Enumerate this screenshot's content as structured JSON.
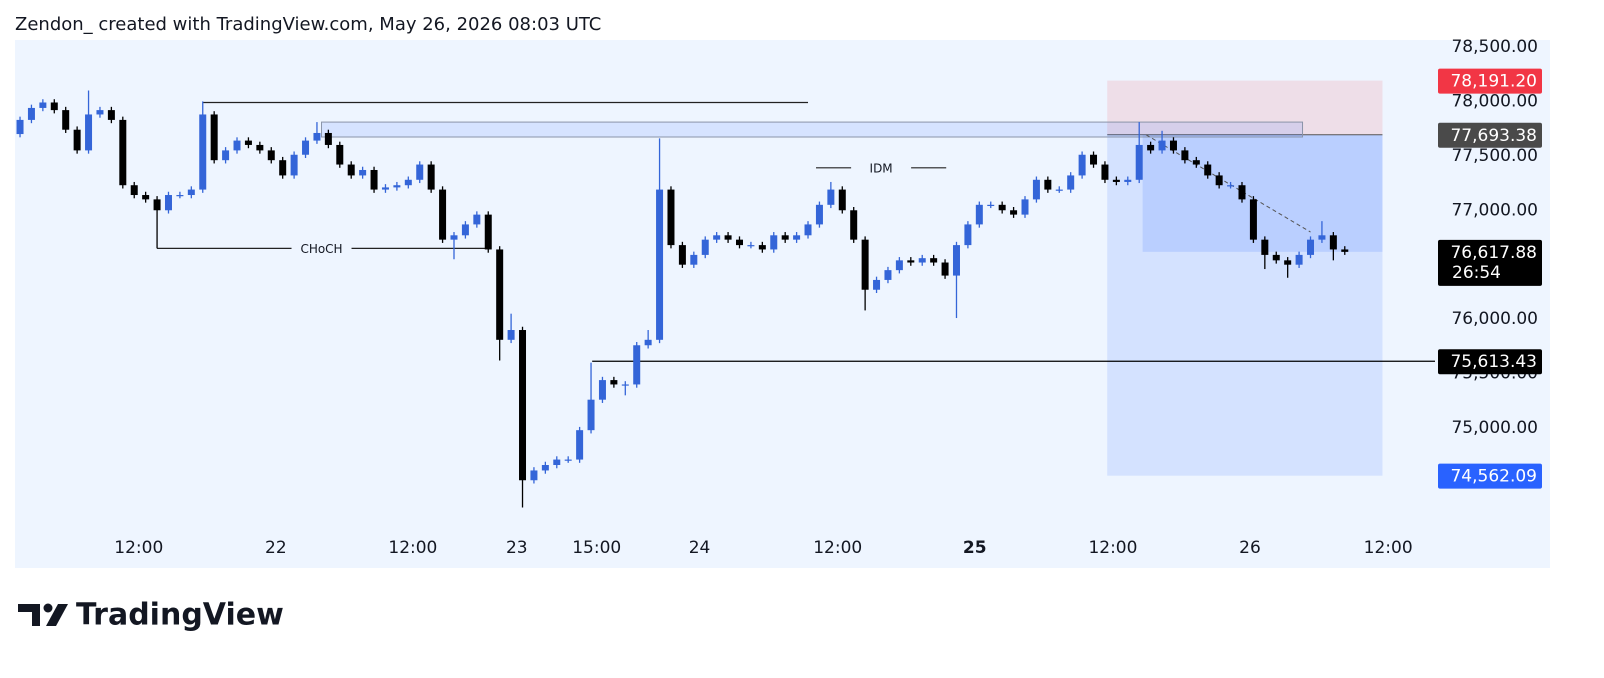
{
  "header": "Zendon_ created with TradingView.com, May 26, 2026 08:03 UTC",
  "footer": "TradingView",
  "chart_data": {
    "type": "candlestick",
    "up_color": "#3465d8",
    "down_color": "#000000",
    "ylim": [
      74063,
      78564
    ],
    "xlim": [
      -0.44,
      123.2
    ],
    "yticks": [
      {
        "value": 78500,
        "label": "78,500.00"
      },
      {
        "value": 78000,
        "label": "78,000.00"
      },
      {
        "value": 77500,
        "label": "77,500.00"
      },
      {
        "value": 77000,
        "label": "77,000.00"
      },
      {
        "value": 76500,
        "label": "76,500.00"
      },
      {
        "value": 76000,
        "label": "76,000.00"
      },
      {
        "value": 75500,
        "label": "75,500.00"
      },
      {
        "value": 75000,
        "label": "75,000.00"
      }
    ],
    "xticks": [
      {
        "value": 10.4,
        "label": "12:00"
      },
      {
        "value": 22.4,
        "label": "22"
      },
      {
        "value": 34.4,
        "label": "12:00"
      },
      {
        "value": 43.5,
        "label": "23"
      },
      {
        "value": 50.5,
        "label": "15:00"
      },
      {
        "value": 59.5,
        "label": "24"
      },
      {
        "value": 71.6,
        "label": "12:00"
      },
      {
        "value": 83.6,
        "label": "25",
        "bold": true
      },
      {
        "value": 95.7,
        "label": "12:00"
      },
      {
        "value": 107.7,
        "label": "26"
      },
      {
        "value": 119.8,
        "label": "12:00"
      }
    ],
    "open": [
      77700,
      77830,
      77940,
      77990,
      77920,
      77740,
      77550,
      77880,
      77920,
      77830,
      77230,
      77140,
      77100,
      77000,
      77140,
      77140,
      77190,
      77880,
      77460,
      77550,
      77640,
      77600,
      77550,
      77460,
      77320,
      77510,
      77640,
      77710,
      77600,
      77420,
      77320,
      77370,
      77190,
      77210,
      77230,
      77280,
      77420,
      77190,
      76730,
      76770,
      76870,
      76960,
      76640,
      75810,
      75900,
      74520,
      74610,
      74660,
      74710,
      74710,
      74980,
      75260,
      75440,
      75400,
      75400,
      75760,
      75810,
      77190,
      76680,
      76500,
      76590,
      76730,
      76770,
      76730,
      76680,
      76680,
      76640,
      76770,
      76730,
      76770,
      76870,
      77050,
      77190,
      77000,
      76730,
      76270,
      76360,
      76450,
      76540,
      76520,
      76560,
      76520,
      76400,
      76680,
      76870,
      77050,
      77050,
      77000,
      76960,
      77100,
      77280,
      77190,
      77190,
      77320,
      77510,
      77420,
      77280,
      77260,
      77280,
      77600,
      77550,
      77640,
      77550,
      77460,
      77420,
      77320,
      77230,
      77230,
      77100,
      76730,
      76590,
      76540,
      76500,
      76590,
      76730,
      76770,
      76640
    ],
    "high": [
      77860,
      77970,
      78020,
      78020,
      77950,
      77770,
      78100,
      77950,
      77950,
      77860,
      77260,
      77170,
      77130,
      77170,
      77170,
      77220,
      78000,
      77910,
      77580,
      77670,
      77670,
      77630,
      77580,
      77490,
      77540,
      77670,
      77810,
      77740,
      77630,
      77450,
      77400,
      77400,
      77240,
      77260,
      77310,
      77450,
      77450,
      77220,
      76800,
      76900,
      76990,
      76990,
      76670,
      76050,
      75930,
      74640,
      74690,
      74740,
      74740,
      75010,
      75600,
      75470,
      75470,
      75430,
      75790,
      75900,
      77660,
      77220,
      76710,
      76620,
      76760,
      76800,
      76800,
      76760,
      76710,
      76710,
      76800,
      76800,
      76800,
      76900,
      77080,
      77260,
      77220,
      77030,
      76760,
      76390,
      76480,
      76570,
      76570,
      76590,
      76590,
      76550,
      76710,
      76900,
      77080,
      77080,
      77080,
      77030,
      77130,
      77310,
      77310,
      77220,
      77350,
      77540,
      77540,
      77450,
      77310,
      77310,
      77810,
      77630,
      77730,
      77670,
      77580,
      77490,
      77450,
      77350,
      77260,
      77260,
      77130,
      76760,
      76620,
      76570,
      76620,
      76760,
      76900,
      76800,
      76670
    ],
    "low": [
      77670,
      77800,
      77910,
      77890,
      77710,
      77520,
      77520,
      77850,
      77800,
      77200,
      77110,
      77070,
      76650,
      76970,
      77110,
      77110,
      77160,
      77430,
      77430,
      77520,
      77570,
      77520,
      77430,
      77290,
      77290,
      77480,
      77610,
      77570,
      77390,
      77290,
      77290,
      77160,
      77160,
      77180,
      77200,
      77250,
      77160,
      76700,
      76550,
      76740,
      76840,
      76610,
      75620,
      75780,
      74270,
      74490,
      74580,
      74630,
      74680,
      74680,
      74950,
      75230,
      75370,
      75300,
      75370,
      75730,
      75780,
      76650,
      76470,
      76470,
      76560,
      76700,
      76700,
      76650,
      76650,
      76610,
      76610,
      76700,
      76700,
      76740,
      76840,
      77020,
      76970,
      76700,
      76080,
      76240,
      76330,
      76420,
      76490,
      76490,
      76490,
      76370,
      76010,
      76650,
      76840,
      77020,
      76970,
      76930,
      76930,
      77070,
      77160,
      77160,
      77160,
      77290,
      77390,
      77250,
      77230,
      77230,
      77250,
      77520,
      77520,
      77520,
      77430,
      77390,
      77290,
      77200,
      77200,
      77070,
      76700,
      76460,
      76510,
      76380,
      76470,
      76560,
      76700,
      76540,
      76590
    ],
    "close": [
      77830,
      77940,
      77990,
      77920,
      77740,
      77550,
      77880,
      77920,
      77830,
      77230,
      77140,
      77100,
      77000,
      77140,
      77140,
      77190,
      77880,
      77460,
      77550,
      77640,
      77600,
      77550,
      77460,
      77320,
      77510,
      77640,
      77710,
      77600,
      77420,
      77320,
      77370,
      77190,
      77210,
      77230,
      77280,
      77420,
      77190,
      76730,
      76770,
      76870,
      76960,
      76640,
      75810,
      75900,
      74520,
      74610,
      74660,
      74710,
      74710,
      74980,
      75260,
      75440,
      75400,
      75400,
      75760,
      75810,
      77190,
      76680,
      76500,
      76590,
      76730,
      76770,
      76730,
      76680,
      76680,
      76640,
      76770,
      76730,
      76770,
      76870,
      77050,
      77190,
      77000,
      76730,
      76270,
      76360,
      76450,
      76540,
      76520,
      76560,
      76520,
      76400,
      76680,
      76870,
      77050,
      77050,
      77000,
      76960,
      77100,
      77280,
      77190,
      77190,
      77320,
      77510,
      77420,
      77280,
      77260,
      77280,
      77600,
      77550,
      77640,
      77550,
      77460,
      77420,
      77320,
      77230,
      77230,
      77100,
      76730,
      76590,
      76540,
      76500,
      76590,
      76730,
      76770,
      76640,
      76617.88
    ],
    "price_labels": [
      {
        "value": 78191.2,
        "label": "78,191.20",
        "color": "#f23645"
      },
      {
        "value": 77693.38,
        "label": "77,693.38",
        "color": "#4a4a4a"
      },
      {
        "value": 76617.88,
        "label": "76,617.88",
        "color": "#000000",
        "countdown": "26:54"
      },
      {
        "value": 75613.43,
        "label": "75,613.43",
        "color": "#000000"
      },
      {
        "value": 74562.09,
        "label": "74,562.09",
        "color": "#2962ff"
      }
    ],
    "position": {
      "from": 95.2,
      "to": 119.3,
      "fill_from": 98.3
    },
    "drawings": {
      "swing_high": {
        "price": 77990,
        "from": 16,
        "to": 69
      },
      "zone": {
        "top": 77810,
        "bottom": 77673,
        "from": 26.4,
        "to": 112.3
      },
      "choch": {
        "label": "CHoCH",
        "price": 76650,
        "from": 12,
        "to": 40.9,
        "label_at": 26.4
      },
      "idm": {
        "label": "IDM",
        "price": 77390,
        "from": 69.7,
        "to": 81.1,
        "label_at": 75.4
      },
      "level": {
        "from": 50.1,
        "to": 123.9
      },
      "trend": {
        "from": 98.6,
        "to": 113,
        "end_price": 76800
      }
    }
  }
}
